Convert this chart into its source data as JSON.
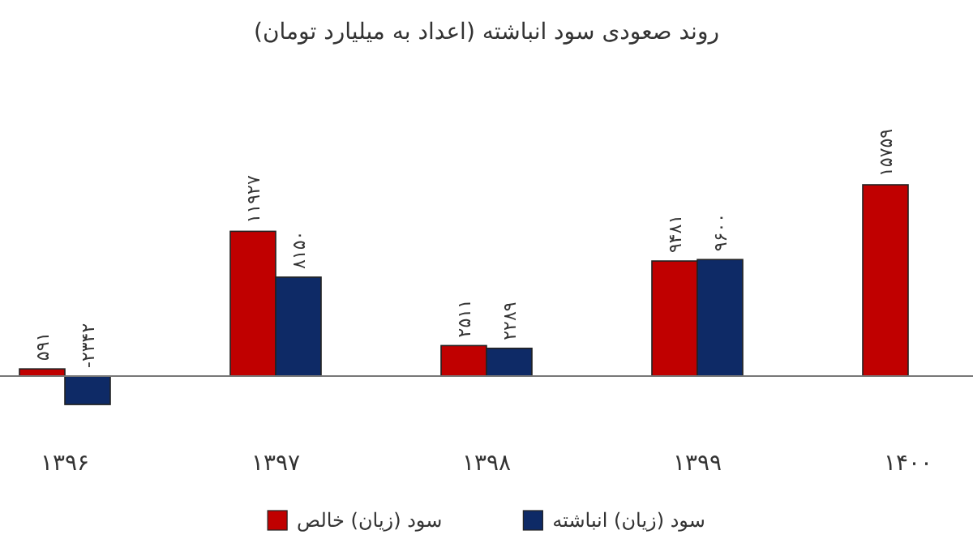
{
  "chart_data": {
    "type": "bar",
    "title": "روند صعودی سود انباشته (اعداد به میلیارد تومان)",
    "categories": [
      "۱۳۹۶",
      "۱۳۹۷",
      "۱۳۹۸",
      "۱۳۹۹",
      "۱۴۰۰"
    ],
    "legend": "bottom",
    "series": [
      {
        "name": "سود (زیان) خالص",
        "color": "#c00000",
        "values": [
          591,
          11927,
          2511,
          9481,
          15759
        ],
        "value_labels": [
          "۵۹۱",
          "۱۱۹۲۷",
          "۲۵۱۱",
          "۹۴۸۱",
          "۱۵۷۵۹"
        ]
      },
      {
        "name": "سود (زیان) انباشته",
        "color": "#0e2a66",
        "values": [
          -2342,
          8150,
          2289,
          9600,
          null
        ],
        "value_labels": [
          "-۲۳۴۲",
          "۸۱۵۰",
          "۲۲۸۹",
          "۹۶۰۰",
          null
        ]
      }
    ]
  }
}
